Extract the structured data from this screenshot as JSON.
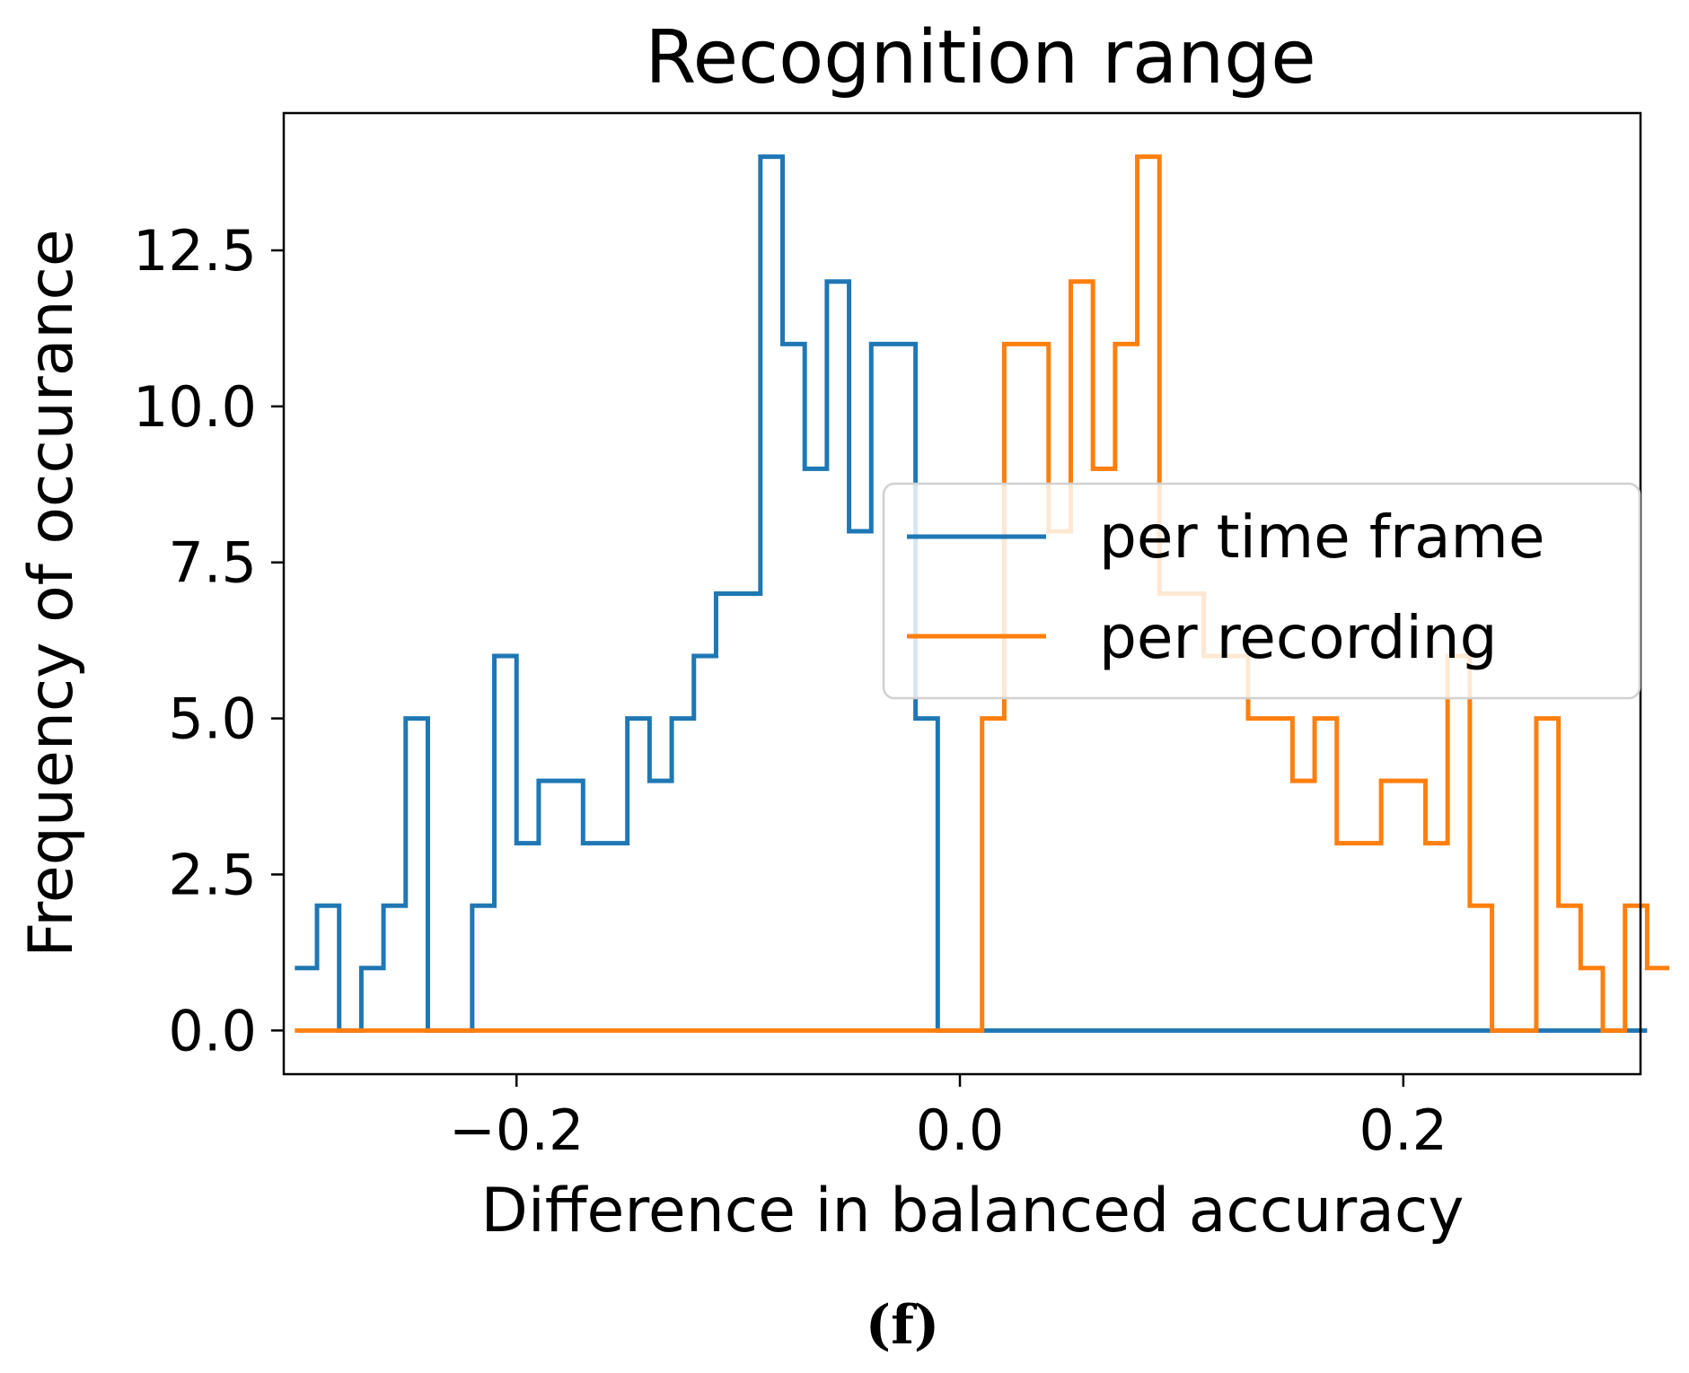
{
  "caption": "(f)",
  "colors": {
    "per_time_frame": "#1f77b4",
    "per_recording": "#ff7f0e",
    "axis": "#000000"
  },
  "chart_data": {
    "type": "histogram-step",
    "title": "Recognition range",
    "xlabel": "Difference in balanced accuracy",
    "ylabel": "Frequency of occurance",
    "xlim": [
      -0.305,
      0.307
    ],
    "ylim": [
      -0.7,
      14.7
    ],
    "x_ticks": [
      {
        "value": -0.2,
        "label": "−0.2"
      },
      {
        "value": 0.0,
        "label": "0.0"
      },
      {
        "value": 0.2,
        "label": "0.2"
      }
    ],
    "y_ticks": [
      {
        "value": 0.0,
        "label": "0.0"
      },
      {
        "value": 2.5,
        "label": "2.5"
      },
      {
        "value": 5.0,
        "label": "5.0"
      },
      {
        "value": 7.5,
        "label": "7.5"
      },
      {
        "value": 10.0,
        "label": "10.0"
      },
      {
        "value": 12.5,
        "label": "12.5"
      }
    ],
    "bin_start": -0.3,
    "bin_width": 0.01,
    "legend": {
      "placement": "center-right"
    },
    "series": [
      {
        "name": "per time frame",
        "color": "#1f77b4",
        "values": [
          1,
          2,
          0,
          1,
          2,
          5,
          0,
          0,
          2,
          6,
          3,
          4,
          4,
          3,
          3,
          5,
          4,
          5,
          6,
          7,
          7,
          14,
          11,
          9,
          12,
          8,
          11,
          11,
          5,
          0,
          0,
          0,
          0,
          0,
          0,
          0,
          0,
          0,
          0,
          0,
          0,
          0,
          0,
          0,
          0,
          0,
          0,
          0,
          0,
          0,
          0,
          0,
          0,
          0,
          0,
          0,
          0,
          0,
          0,
          0,
          0
        ]
      },
      {
        "name": "per recording",
        "color": "#ff7f0e",
        "values": [
          0,
          0,
          0,
          0,
          0,
          0,
          0,
          0,
          0,
          0,
          0,
          0,
          0,
          0,
          0,
          0,
          0,
          0,
          0,
          0,
          0,
          0,
          0,
          0,
          0,
          0,
          0,
          0,
          0,
          0,
          0,
          5,
          11,
          11,
          8,
          12,
          9,
          11,
          14,
          7,
          7,
          6,
          6,
          5,
          5,
          4,
          5,
          3,
          3,
          4,
          4,
          3,
          6,
          2,
          0,
          0,
          5,
          2,
          1,
          0,
          2,
          1
        ]
      }
    ]
  }
}
